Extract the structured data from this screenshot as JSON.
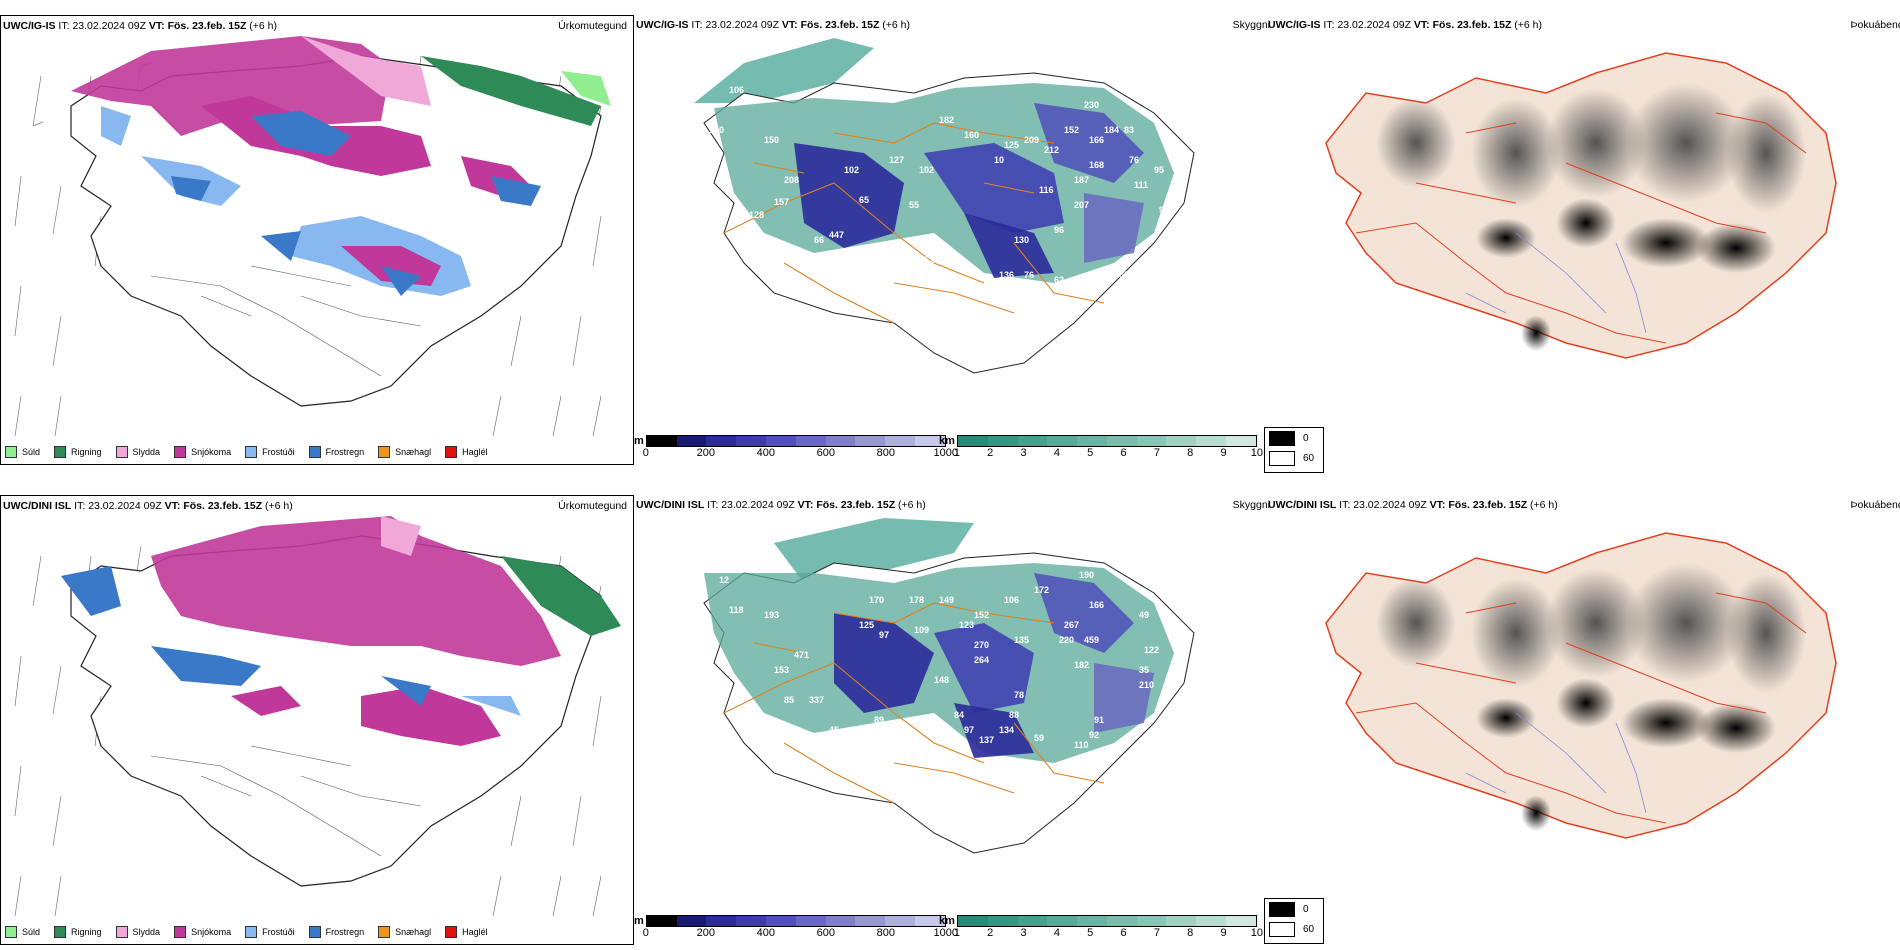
{
  "rows": [
    {
      "model": "UWC/IG-IS",
      "precip": {
        "title": "Úrkomutegund"
      },
      "cloud": {
        "title": "Skyggni",
        "labels": [
          "106",
          "130",
          "152",
          "150",
          "208",
          "157",
          "128",
          "102",
          "65",
          "66",
          "447",
          "47",
          "76",
          "64",
          "51",
          "55",
          "127",
          "94",
          "102",
          "182",
          "160",
          "111",
          "10",
          "101",
          "125",
          "103",
          "209",
          "212",
          "152",
          "166",
          "184",
          "83",
          "230",
          "223",
          "168",
          "187",
          "116",
          "120",
          "207",
          "252",
          "96",
          "130",
          "90",
          "136",
          "76",
          "62",
          "135",
          "105",
          "103",
          "95",
          "99",
          "58",
          "111",
          "76",
          "195"
        ]
      },
      "fog": {
        "title": "Þokuábendi"
      }
    },
    {
      "model": "UWC/DINI ISL",
      "precip": {
        "title": "Úrkomutegund"
      },
      "cloud": {
        "title": "Skyggni",
        "labels": [
          "12",
          "118",
          "193",
          "170",
          "178",
          "149",
          "106",
          "152",
          "172",
          "190",
          "166",
          "125",
          "97",
          "109",
          "123",
          "270",
          "264",
          "267",
          "220",
          "459",
          "135",
          "182",
          "49",
          "122",
          "35",
          "210",
          "153",
          "471",
          "85",
          "337",
          "148",
          "89",
          "84",
          "78",
          "88",
          "134",
          "137",
          "59",
          "110",
          "92",
          "91",
          "97",
          "70",
          "10",
          "45"
        ]
      },
      "fog": {
        "title": "Þokuábendi"
      }
    }
  ],
  "header": {
    "it_label": "IT:",
    "it_value": "23.02.2024 09Z",
    "vt_label": "VT:",
    "vt_value": "Fös. 23.feb. 15Z",
    "lead": "(+6 h)"
  },
  "precip_legend": [
    {
      "label": "Súld",
      "color": "#90ee90"
    },
    {
      "label": "Rigning",
      "color": "#2e8b57"
    },
    {
      "label": "Slydda",
      "color": "#f0a8d8"
    },
    {
      "label": "Snjókoma",
      "color": "#c0399a"
    },
    {
      "label": "Frostúði",
      "color": "#87b8f0"
    },
    {
      "label": "Frostregn",
      "color": "#3a78c8"
    },
    {
      "label": "Snæhagl",
      "color": "#f0961e"
    },
    {
      "label": "Haglél",
      "color": "#e01010"
    }
  ],
  "colorbar_m": {
    "unit": "m",
    "ticks": [
      "0",
      "200",
      "400",
      "600",
      "800",
      "1000"
    ],
    "colors": [
      "#000000",
      "#1a1a70",
      "#2a2a9a",
      "#3c3cb0",
      "#5050b8",
      "#6868c0",
      "#8080c8",
      "#9898d0",
      "#b0b0dc",
      "#c8c8e8"
    ]
  },
  "colorbar_km": {
    "unit": "km",
    "ticks": [
      "1",
      "2",
      "3",
      "4",
      "5",
      "6",
      "7",
      "8",
      "9",
      "10"
    ],
    "colors": [
      "#2a8a7a",
      "#3a9484",
      "#4a9e8e",
      "#5aa898",
      "#6ab2a2",
      "#7abcac",
      "#8ac6b6",
      "#a0d0c2",
      "#b8dcd0",
      "#d0e8e0"
    ]
  },
  "fog_legend": {
    "items": [
      "0",
      "60"
    ],
    "colors": [
      "#000000",
      "#ffffff"
    ]
  }
}
